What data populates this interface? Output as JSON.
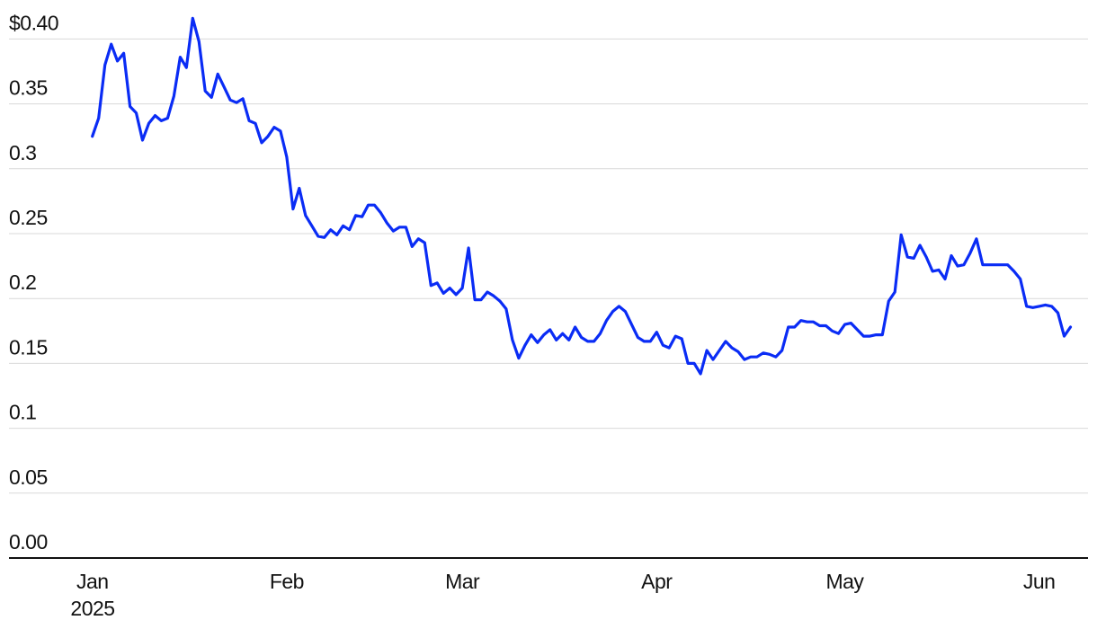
{
  "chart_data": {
    "type": "line",
    "color": "#0a2cf5",
    "x": [
      0,
      1,
      2,
      3,
      4,
      5,
      6,
      7,
      8,
      9,
      10,
      11,
      12,
      13,
      14,
      15,
      16,
      17,
      18,
      19,
      20,
      21,
      22,
      23,
      24,
      25,
      26,
      27,
      28,
      29,
      30,
      31,
      32,
      33,
      34,
      35,
      36,
      37,
      38,
      39,
      40,
      41,
      42,
      43,
      44,
      45,
      46,
      47,
      48,
      49,
      50,
      51,
      52,
      53,
      54,
      55,
      56,
      57,
      58,
      59,
      60,
      61,
      62,
      63,
      64,
      65,
      66,
      67,
      68,
      69,
      70,
      71,
      72,
      73,
      74,
      75,
      76,
      77,
      78,
      79,
      80,
      81,
      82,
      83,
      84,
      85,
      86,
      87,
      88,
      89,
      90,
      91,
      92,
      93,
      94,
      95,
      96,
      97,
      98,
      99,
      100,
      101,
      102,
      103,
      104,
      105,
      106,
      107,
      108,
      109,
      110,
      111,
      112,
      113,
      114,
      115,
      116,
      117,
      118,
      119,
      120,
      121,
      122,
      123,
      124,
      125,
      126,
      127,
      128,
      129,
      130,
      131,
      132,
      133,
      134,
      135,
      136,
      137,
      138,
      139,
      140,
      141,
      142,
      143,
      144,
      145,
      146,
      147,
      148,
      149,
      150,
      151,
      152,
      153,
      154,
      155,
      156
    ],
    "values": [
      0.325,
      0.339,
      0.38,
      0.396,
      0.383,
      0.389,
      0.348,
      0.343,
      0.322,
      0.335,
      0.341,
      0.337,
      0.339,
      0.356,
      0.386,
      0.378,
      0.416,
      0.398,
      0.36,
      0.355,
      0.373,
      0.363,
      0.353,
      0.351,
      0.354,
      0.337,
      0.335,
      0.32,
      0.325,
      0.332,
      0.329,
      0.309,
      0.269,
      0.285,
      0.264,
      0.256,
      0.248,
      0.247,
      0.253,
      0.249,
      0.256,
      0.253,
      0.264,
      0.263,
      0.272,
      0.272,
      0.266,
      0.258,
      0.252,
      0.255,
      0.255,
      0.24,
      0.246,
      0.243,
      0.21,
      0.212,
      0.204,
      0.208,
      0.203,
      0.208,
      0.239,
      0.199,
      0.199,
      0.205,
      0.202,
      0.198,
      0.192,
      0.168,
      0.154,
      0.164,
      0.172,
      0.166,
      0.172,
      0.176,
      0.168,
      0.173,
      0.168,
      0.178,
      0.17,
      0.167,
      0.167,
      0.173,
      0.183,
      0.19,
      0.194,
      0.19,
      0.18,
      0.17,
      0.167,
      0.167,
      0.174,
      0.164,
      0.162,
      0.171,
      0.169,
      0.15,
      0.15,
      0.142,
      0.16,
      0.153,
      0.16,
      0.167,
      0.162,
      0.159,
      0.153,
      0.155,
      0.155,
      0.158,
      0.157,
      0.155,
      0.16,
      0.178,
      0.178,
      0.183,
      0.182,
      0.182,
      0.179,
      0.179,
      0.175,
      0.173,
      0.18,
      0.181,
      0.176,
      0.171,
      0.171,
      0.172,
      0.172,
      0.198,
      0.205,
      0.249,
      0.232,
      0.231,
      0.241,
      0.232,
      0.221,
      0.222,
      0.215,
      0.233,
      0.225,
      0.226,
      0.235,
      0.246,
      0.226,
      0.226,
      0.226,
      0.226,
      0.226,
      0.221,
      0.215,
      0.194,
      0.193,
      0.194,
      0.195,
      0.194,
      0.189,
      0.171,
      0.178
    ],
    "xlim": [
      -13.3,
      158.8
    ],
    "xticks": [
      {
        "value": 0,
        "label": "Jan"
      },
      {
        "value": 31,
        "label": "Feb"
      },
      {
        "value": 59,
        "label": "Mar"
      },
      {
        "value": 90,
        "label": "Apr"
      },
      {
        "value": 120,
        "label": "May"
      },
      {
        "value": 151,
        "label": "Jun"
      }
    ],
    "x_sublabel": "2025",
    "ylim": [
      0,
      0.42
    ],
    "yticks": [
      {
        "value": 0.4,
        "label": "$0.40"
      },
      0.35,
      0.3,
      0.25,
      0.2,
      0.15,
      0.1,
      0.05,
      {
        "value": 0,
        "label": "0.00"
      }
    ],
    "grid": true
  }
}
